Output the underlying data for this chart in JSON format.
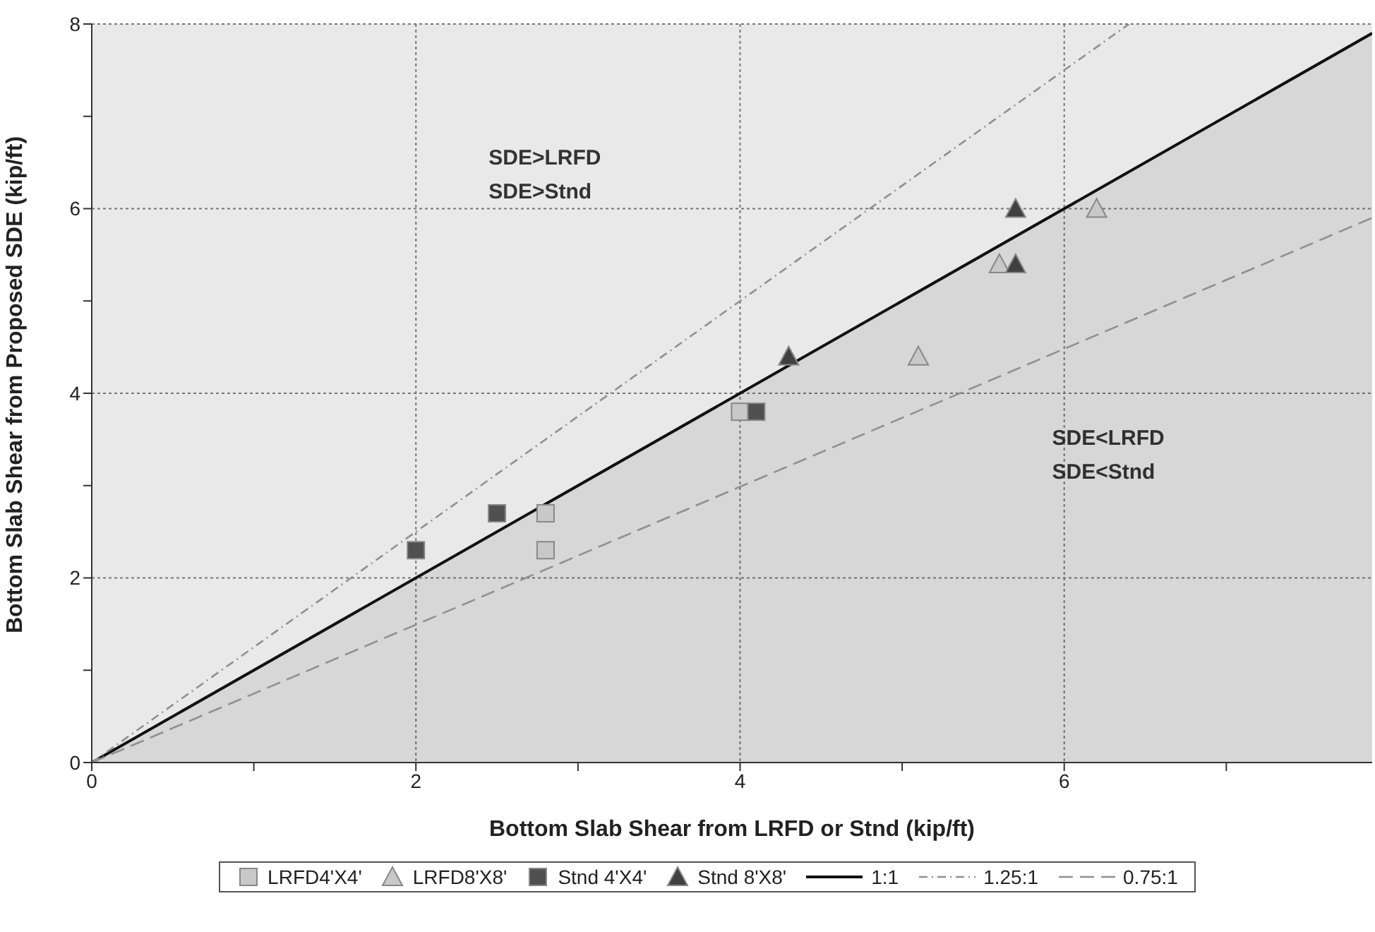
{
  "chart_data": {
    "type": "scatter",
    "xlabel": "Bottom Slab Shear from LRFD or Stnd (kip/ft)",
    "ylabel": "Bottom Slab Shear from Proposed SDE (kip/ft)",
    "xlim": [
      0,
      7.9
    ],
    "ylim": [
      0,
      8
    ],
    "xticks": [
      0,
      {
        "value": 1,
        "label": null
      },
      2,
      {
        "value": 3,
        "label": null
      },
      4,
      {
        "value": 5,
        "label": null
      },
      6,
      {
        "value": 7,
        "label": null
      }
    ],
    "yticks": [
      0,
      {
        "value": 1,
        "label": null
      },
      2,
      {
        "value": 3,
        "label": null
      },
      4,
      {
        "value": 5,
        "label": null
      },
      6,
      {
        "value": 7,
        "label": null
      },
      8
    ],
    "grid": true,
    "legend": "bottom",
    "annotations": [
      "SDE>LRFD\nSDE>Stnd",
      "SDE<LRFD\nSDE<Stnd"
    ],
    "series": [
      {
        "name": "LRFD4'X4'",
        "marker": "square",
        "color": "#c8c8c8",
        "x": [
          2.8,
          2.8,
          4.0
        ],
        "values": [
          2.7,
          2.3,
          3.8
        ]
      },
      {
        "name": "LRFD8'X8'",
        "marker": "triangle",
        "color": "#c8c8c8",
        "x": [
          5.1,
          5.6,
          6.2
        ],
        "values": [
          4.4,
          5.4,
          6.0
        ]
      },
      {
        "name": "Stnd 4'X4'",
        "marker": "square",
        "color": "#505050",
        "x": [
          2.0,
          2.5,
          4.1
        ],
        "values": [
          2.3,
          2.7,
          3.8
        ]
      },
      {
        "name": "Stnd 8'X8'",
        "marker": "triangle",
        "color": "#404040",
        "x": [
          4.3,
          5.7,
          5.7
        ],
        "values": [
          4.4,
          6.0,
          5.4
        ]
      },
      {
        "name": "1:1",
        "type": "area",
        "line_style": "solid",
        "color": "#111111",
        "x": [
          0,
          7.9
        ],
        "values": [
          0,
          7.9
        ]
      },
      {
        "name": "1.25:1",
        "type": "line",
        "line_style": "dotted",
        "color": "#909090",
        "x": [
          0,
          6.4
        ],
        "values": [
          0,
          8
        ]
      },
      {
        "name": "0.75:1",
        "type": "line",
        "line_style": "dashed",
        "color": "#909090",
        "x": [
          0,
          7.9
        ],
        "values": [
          0,
          5.9
        ]
      }
    ]
  }
}
